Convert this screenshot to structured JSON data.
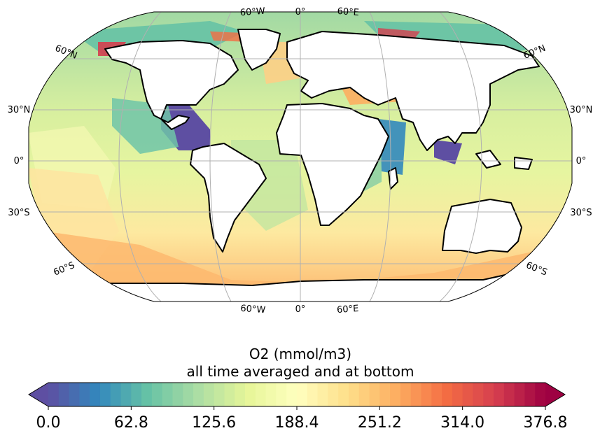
{
  "map": {
    "projection": "Robinson",
    "variable_title": "O2 (mmol/m3)",
    "variable_subtitle": "all time averaged and at bottom",
    "lon_labels_top": [
      "60°W",
      "0°",
      "60°E"
    ],
    "lon_labels_bottom": [
      "60°W",
      "0°",
      "60°E"
    ],
    "lat_labels_left": [
      "30°N",
      "0°",
      "30°S"
    ],
    "lat_labels_right": [
      "30°N",
      "0°",
      "30°S"
    ],
    "lat_labels_diag_left": [
      "60°N",
      "60°S"
    ],
    "lat_labels_diag_right": [
      "60°N",
      "60°S"
    ],
    "gridlines": true,
    "land_color": "#ffffff",
    "coastline_color": "#000000"
  },
  "colorbar": {
    "colormap": "Spectral_r",
    "min": 0.0,
    "max": 376.8,
    "tick_labels": [
      "0.0",
      "62.8",
      "125.6",
      "188.4",
      "251.2",
      "314.0",
      "376.8"
    ],
    "extend": "both",
    "colors": [
      "#5e4fa2",
      "#3288bd",
      "#66c2a5",
      "#abdda4",
      "#e6f598",
      "#ffffbf",
      "#fee08b",
      "#fdae61",
      "#f46d43",
      "#d53e4f",
      "#9e0142"
    ]
  }
}
